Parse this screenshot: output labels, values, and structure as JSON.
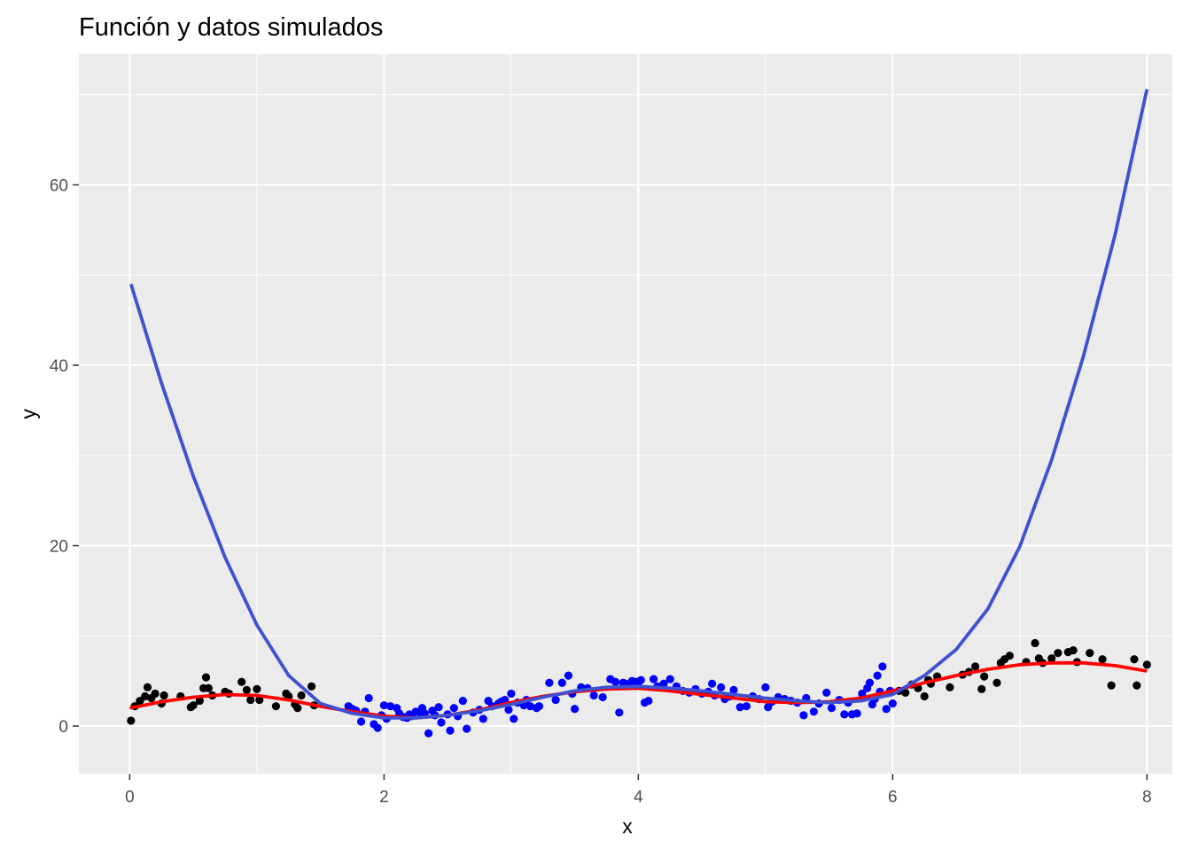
{
  "chart_data": {
    "type": "scatter",
    "title": "Función y datos simulados",
    "xlabel": "x",
    "ylabel": "y",
    "xlim": [
      -0.4,
      8.2
    ],
    "ylim": [
      -5.3,
      74.5
    ],
    "x_ticks": [
      0,
      2,
      4,
      6,
      8
    ],
    "x_tick_labels": [
      "0",
      "2",
      "4",
      "6",
      "8"
    ],
    "y_ticks": [
      0,
      20,
      40,
      60
    ],
    "y_tick_labels": [
      "0",
      "20",
      "40",
      "60"
    ],
    "grid": true,
    "legend": "none",
    "colors": {
      "panel": "#EBEBEB",
      "grid": "#FFFFFF",
      "points_outside": "#000000",
      "points_inside": "#0000FF",
      "true_function": "#FF0000",
      "polynomial_fit": "#3F51D1"
    },
    "series": [
      {
        "kind": "points",
        "color": "#000000",
        "x": [
          0.01,
          0.04,
          0.08,
          0.12,
          0.14,
          0.17,
          0.2,
          0.25,
          0.27,
          0.4,
          0.48,
          0.5,
          0.55,
          0.58,
          0.6,
          0.62,
          0.65,
          0.75,
          0.78,
          0.88,
          0.92,
          0.95,
          1.0,
          1.02,
          1.15,
          1.23,
          1.25,
          1.3,
          1.32,
          1.35,
          1.43,
          1.45,
          6.05,
          6.1,
          6.15,
          6.2,
          6.25,
          6.28,
          6.3,
          6.35,
          6.45,
          6.55,
          6.6,
          6.65,
          6.7,
          6.72,
          6.82,
          6.85,
          6.88,
          6.92,
          7.05,
          7.12,
          7.15,
          7.18,
          7.25,
          7.3,
          7.38,
          7.42,
          7.45,
          7.55,
          7.65,
          7.72,
          7.9,
          7.92,
          8.0
        ],
        "y": [
          0.6,
          2.2,
          2.8,
          3.3,
          4.3,
          3.1,
          3.6,
          2.5,
          3.4,
          3.3,
          2.1,
          2.3,
          2.8,
          4.2,
          5.4,
          4.2,
          3.4,
          3.8,
          3.6,
          4.9,
          4.0,
          2.9,
          4.1,
          2.9,
          2.2,
          3.6,
          3.3,
          2.4,
          2.0,
          3.4,
          4.4,
          2.3,
          3.9,
          3.7,
          4.6,
          4.2,
          3.3,
          5.1,
          4.7,
          5.5,
          4.3,
          5.7,
          6.0,
          6.6,
          4.1,
          5.5,
          4.8,
          7.0,
          7.4,
          7.8,
          7.1,
          9.2,
          7.5,
          7.0,
          7.5,
          8.1,
          8.2,
          8.4,
          7.1,
          8.1,
          7.4,
          4.5,
          7.4,
          4.5,
          6.8
        ]
      },
      {
        "kind": "points",
        "color": "#0000FF",
        "x": [
          1.72,
          1.75,
          1.78,
          1.82,
          1.85,
          1.88,
          1.92,
          1.95,
          1.98,
          2.0,
          2.02,
          2.05,
          2.1,
          2.12,
          2.15,
          2.18,
          2.2,
          2.22,
          2.25,
          2.28,
          2.3,
          2.32,
          2.35,
          2.38,
          2.4,
          2.43,
          2.45,
          2.5,
          2.52,
          2.55,
          2.58,
          2.62,
          2.65,
          2.7,
          2.75,
          2.78,
          2.82,
          2.85,
          2.9,
          2.92,
          2.95,
          2.98,
          3.0,
          3.02,
          3.05,
          3.1,
          3.12,
          3.15,
          3.2,
          3.22,
          3.3,
          3.35,
          3.4,
          3.45,
          3.48,
          3.5,
          3.55,
          3.6,
          3.65,
          3.72,
          3.78,
          3.82,
          3.85,
          3.88,
          3.9,
          3.92,
          3.95,
          3.98,
          4.0,
          4.02,
          4.05,
          4.08,
          4.12,
          4.15,
          4.2,
          4.25,
          4.3,
          4.35,
          4.4,
          4.45,
          4.5,
          4.55,
          4.58,
          4.6,
          4.65,
          4.68,
          4.72,
          4.75,
          4.8,
          4.85,
          4.9,
          4.95,
          5.0,
          5.02,
          5.05,
          5.1,
          5.15,
          5.2,
          5.25,
          5.3,
          5.32,
          5.38,
          5.42,
          5.48,
          5.52,
          5.58,
          5.62,
          5.65,
          5.68,
          5.72,
          5.76,
          5.8,
          5.82,
          5.84,
          5.86,
          5.88,
          5.9,
          5.92,
          5.95,
          5.98,
          6.0
        ],
        "y": [
          2.2,
          1.9,
          1.7,
          0.5,
          1.6,
          3.1,
          0.2,
          -0.2,
          1.2,
          2.3,
          0.8,
          2.2,
          2.0,
          1.4,
          1.0,
          0.9,
          1.3,
          1.1,
          1.6,
          1.5,
          2.0,
          1.4,
          -0.8,
          1.7,
          1.2,
          2.1,
          0.4,
          1.3,
          -0.5,
          2.0,
          1.1,
          2.8,
          -0.3,
          1.5,
          1.8,
          0.8,
          2.8,
          2.2,
          2.5,
          2.7,
          2.9,
          1.8,
          3.6,
          0.8,
          2.6,
          2.3,
          2.9,
          2.2,
          2.0,
          2.2,
          4.8,
          2.9,
          4.8,
          5.6,
          3.6,
          1.9,
          4.3,
          4.2,
          3.4,
          3.2,
          5.2,
          4.9,
          1.5,
          4.8,
          4.7,
          4.5,
          5.0,
          4.9,
          4.8,
          5.1,
          2.6,
          2.8,
          5.2,
          4.4,
          4.7,
          5.2,
          4.4,
          3.9,
          3.7,
          4.1,
          3.6,
          3.8,
          4.7,
          3.4,
          4.3,
          3.0,
          3.3,
          4.0,
          2.1,
          2.2,
          3.3,
          3.0,
          4.3,
          2.1,
          2.7,
          3.2,
          3.0,
          2.8,
          2.6,
          1.2,
          3.1,
          1.6,
          2.5,
          3.7,
          2.0,
          2.9,
          1.3,
          2.6,
          1.3,
          1.4,
          3.6,
          4.2,
          4.8,
          2.4,
          3.0,
          5.6,
          3.8,
          6.6,
          1.9,
          3.9,
          2.5
        ]
      },
      {
        "kind": "line",
        "color": "#FF0000",
        "x": [
          0,
          0.25,
          0.5,
          0.75,
          1.0,
          1.25,
          1.5,
          1.75,
          2.0,
          2.25,
          2.5,
          2.75,
          3.0,
          3.25,
          3.5,
          3.75,
          4.0,
          4.25,
          4.5,
          4.75,
          5.0,
          5.25,
          5.5,
          5.75,
          6.0,
          6.25,
          6.5,
          6.75,
          7.0,
          7.25,
          7.5,
          7.75,
          8.0
        ],
        "y": [
          2.0,
          2.7,
          3.2,
          3.5,
          3.4,
          2.9,
          2.2,
          1.6,
          1.1,
          0.9,
          1.2,
          1.8,
          2.6,
          3.3,
          3.8,
          4.1,
          4.2,
          3.9,
          3.5,
          3.1,
          2.7,
          2.6,
          2.7,
          3.1,
          3.9,
          4.8,
          5.6,
          6.3,
          6.8,
          7.0,
          7.0,
          6.7,
          6.1
        ]
      },
      {
        "kind": "line",
        "color": "#3F51D1",
        "x": [
          0.01,
          0.25,
          0.5,
          0.75,
          1.0,
          1.25,
          1.5,
          1.75,
          2.0,
          2.25,
          2.5,
          2.75,
          3.0,
          3.25,
          3.5,
          3.75,
          4.0,
          4.25,
          4.5,
          4.75,
          5.0,
          5.25,
          5.5,
          5.75,
          6.0,
          6.25,
          6.5,
          6.75,
          7.0,
          7.25,
          7.5,
          7.75,
          8.0
        ],
        "y": [
          49.0,
          38.0,
          27.7,
          18.7,
          11.2,
          5.6,
          2.5,
          1.4,
          0.9,
          0.9,
          1.2,
          1.7,
          2.4,
          3.2,
          3.9,
          4.3,
          4.4,
          4.2,
          3.9,
          3.5,
          3.1,
          2.8,
          2.6,
          2.8,
          3.5,
          5.6,
          8.5,
          13.0,
          19.9,
          29.5,
          41.0,
          54.5,
          70.6
        ]
      }
    ]
  }
}
